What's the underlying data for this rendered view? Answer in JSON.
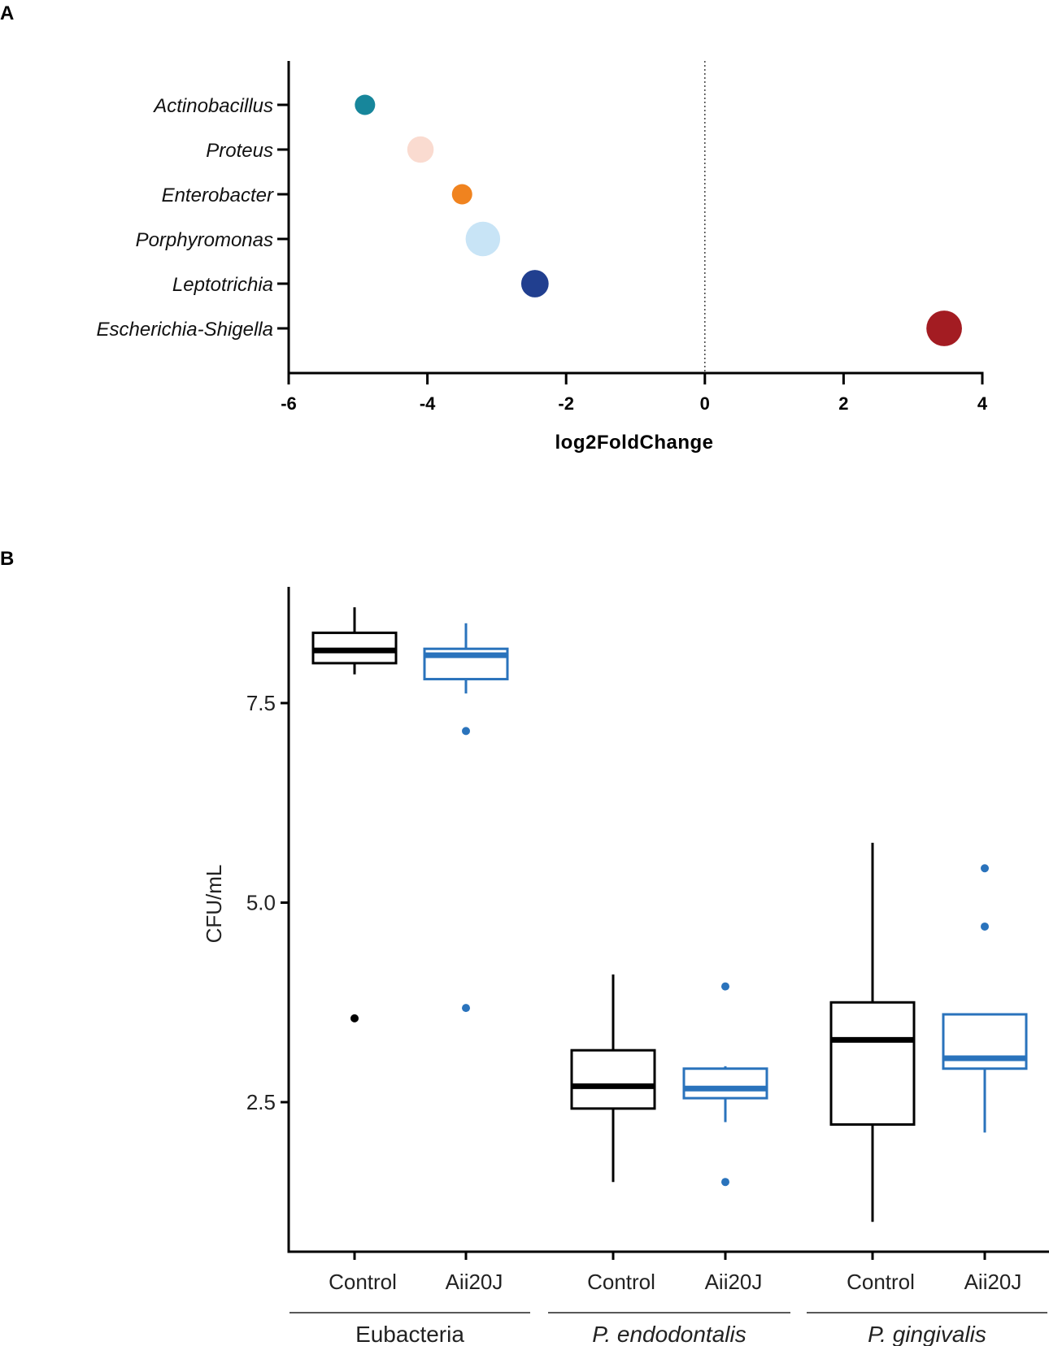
{
  "chart_data": [
    {
      "panel": "A",
      "type": "scatter",
      "xlabel": "log2FoldChange",
      "xlim": [
        -6,
        4
      ],
      "xticks": [
        "-6",
        "-4",
        "-2",
        "0",
        "2",
        "4"
      ],
      "categories": [
        "Actinobacillus",
        "Proteus",
        "Enterobacter",
        "Porphyromonas",
        "Leptotrichia",
        "Escherichia-Shigella"
      ],
      "values": [
        -4.9,
        -4.1,
        -3.5,
        -3.2,
        -2.45,
        3.45
      ],
      "point_sizes": [
        1.0,
        1.3,
        1.0,
        1.7,
        1.35,
        1.75
      ],
      "colors": [
        "#17869b",
        "#fadbd0",
        "#f0831f",
        "#c8e4f6",
        "#213f8f",
        "#a31c22"
      ],
      "reference_line_x": 0
    },
    {
      "panel": "B",
      "type": "boxplot",
      "ylabel": "CFU/mL",
      "yticks": [
        "2.5",
        "5.0",
        "7.5"
      ],
      "xticks": [
        "Control",
        "Aii20J",
        "Control",
        "Aii20J",
        "Control",
        "Aii20J"
      ],
      "groups": [
        "Eubacteria",
        "P. endodontalis",
        "P. gingivalis"
      ],
      "group_italic": [
        false,
        true,
        true
      ],
      "series_colors": {
        "Control": "#000000",
        "Aii20J": "#2a73bc"
      },
      "boxes": [
        {
          "group": "Eubacteria",
          "series": "Control",
          "whisker_low": 7.86,
          "q1": 8.0,
          "median": 8.16,
          "q3": 8.38,
          "whisker_high": 8.7,
          "outliers": [
            3.55
          ]
        },
        {
          "group": "Eubacteria",
          "series": "Aii20J",
          "whisker_low": 7.62,
          "q1": 7.8,
          "median": 8.1,
          "q3": 8.18,
          "whisker_high": 8.5,
          "outliers": [
            7.15,
            3.68
          ]
        },
        {
          "group": "P. endodontalis",
          "series": "Control",
          "whisker_low": 1.5,
          "q1": 2.42,
          "median": 2.7,
          "q3": 3.15,
          "whisker_high": 4.1,
          "outliers": []
        },
        {
          "group": "P. endodontalis",
          "series": "Aii20J",
          "whisker_low": 2.25,
          "q1": 2.55,
          "median": 2.67,
          "q3": 2.92,
          "whisker_high": 2.95,
          "outliers": [
            3.95,
            1.5
          ]
        },
        {
          "group": "P. gingivalis",
          "series": "Control",
          "whisker_low": 1.0,
          "q1": 2.22,
          "median": 3.28,
          "q3": 3.75,
          "whisker_high": 5.75,
          "outliers": []
        },
        {
          "group": "P. gingivalis",
          "series": "Aii20J",
          "whisker_low": 2.12,
          "q1": 2.92,
          "median": 3.05,
          "q3": 3.6,
          "whisker_high": 3.6,
          "outliers": [
            5.43,
            4.7
          ]
        }
      ]
    }
  ],
  "labels": {
    "panel_a": "A",
    "panel_b": "B"
  }
}
